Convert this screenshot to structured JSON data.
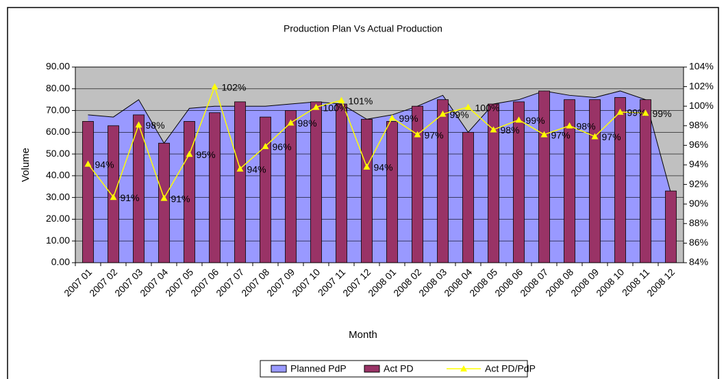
{
  "chart_data": {
    "type": "combo",
    "title": "Production Plan Vs Actual Production",
    "x_label": "Month",
    "y_label": "Volume",
    "categories": [
      "2007 01",
      "2007 02",
      "2007 03",
      "2007 04",
      "2007 05",
      "2007 06",
      "2007 07",
      "2007 08",
      "2007 09",
      "2007 10",
      "2007 11",
      "2007 12",
      "2008 01",
      "2008 02",
      "2008 03",
      "2008 04",
      "2008 05",
      "2008 06",
      "2008 07",
      "2008 08",
      "2008 09",
      "2008 10",
      "2008 11",
      "2008 12"
    ],
    "ylim": [
      0,
      90
    ],
    "yticks": [
      {
        "value": 0,
        "label": "0.00"
      },
      {
        "value": 10,
        "label": "10.00"
      },
      {
        "value": 20,
        "label": "20.00"
      },
      {
        "value": 30,
        "label": "30.00"
      },
      {
        "value": 40,
        "label": "40.00"
      },
      {
        "value": 50,
        "label": "50.00"
      },
      {
        "value": 60,
        "label": "60.00"
      },
      {
        "value": 70,
        "label": "70.00"
      },
      {
        "value": 80,
        "label": "80.00"
      },
      {
        "value": 90,
        "label": "90.00"
      }
    ],
    "y2lim": [
      84,
      104
    ],
    "y2ticks": [
      {
        "value": 84,
        "label": "84%"
      },
      {
        "value": 86,
        "label": "86%"
      },
      {
        "value": 88,
        "label": "88%"
      },
      {
        "value": 90,
        "label": "90%"
      },
      {
        "value": 92,
        "label": "92%"
      },
      {
        "value": 94,
        "label": "94%"
      },
      {
        "value": 96,
        "label": "96%"
      },
      {
        "value": 98,
        "label": "98%"
      },
      {
        "value": 100,
        "label": "100%"
      },
      {
        "value": 102,
        "label": "102%"
      },
      {
        "value": 104,
        "label": "104%"
      }
    ],
    "grid": true,
    "legend": "bottom",
    "series": [
      {
        "name": "Planned PdP",
        "type": "area",
        "color": "#9999ff",
        "values": [
          68,
          67,
          75,
          55,
          71,
          72,
          72,
          72,
          73,
          74,
          73,
          66,
          68,
          72,
          77,
          60,
          73,
          75,
          79,
          77,
          76,
          79,
          75,
          32
        ]
      },
      {
        "name": "Act PD",
        "type": "bar",
        "color": "#993366",
        "values": [
          65,
          63,
          68,
          55,
          65,
          69,
          74,
          67,
          70,
          74,
          73,
          66,
          65,
          72,
          75,
          60,
          73,
          74,
          79,
          75,
          75,
          76,
          75,
          33
        ]
      },
      {
        "name": "Act PD/PdP",
        "type": "line",
        "axis": "y2",
        "color": "#ffff00",
        "values": [
          94.1,
          90.7,
          98.1,
          90.6,
          95.1,
          102.0,
          93.6,
          95.9,
          98.3,
          99.9,
          100.6,
          93.8,
          98.8,
          97.1,
          99.2,
          99.9,
          97.6,
          98.6,
          97.1,
          98.0,
          96.9,
          99.4,
          99.3,
          null
        ],
        "value_labels": [
          "94%",
          "91%",
          "98%",
          "91%",
          "95%",
          "102%",
          "94%",
          "96%",
          "98%",
          "100%",
          "101%",
          "94%",
          "99%",
          "97%",
          "99%",
          "100%",
          "98%",
          "99%",
          "97%",
          "98%",
          "97%",
          "99%",
          "99%",
          null
        ]
      }
    ]
  }
}
